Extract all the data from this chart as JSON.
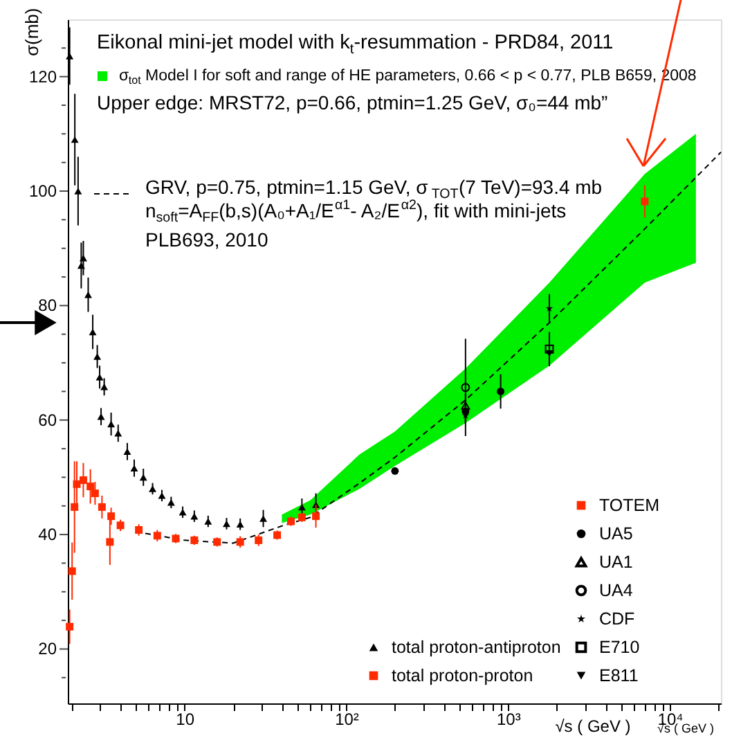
{
  "chart_data": {
    "type": "scatter",
    "title": "Eikonal mini-jet model with k$_{t}$-resummation - PRD84, 2011",
    "xlabel": "√s ( GeV )",
    "ylabel": "σ(mb)",
    "log": "x",
    "legend": "bottom right",
    "grid": false,
    "xlim": [
      1.9,
      20700
    ],
    "ylim": [
      10.5,
      130
    ],
    "xticks": [
      {
        "value": 2,
        "label": null
      },
      {
        "value": 3,
        "label": null
      },
      {
        "value": 4,
        "label": null
      },
      {
        "value": 5,
        "label": null
      },
      {
        "value": 6,
        "label": null
      },
      {
        "value": 7,
        "label": null
      },
      {
        "value": 8,
        "label": null
      },
      {
        "value": 9,
        "label": null
      },
      10,
      {
        "value": 20,
        "label": null
      },
      {
        "value": 30,
        "label": null
      },
      {
        "value": 40,
        "label": null
      },
      {
        "value": 50,
        "label": null
      },
      {
        "value": 60,
        "label": null
      },
      {
        "value": 70,
        "label": null
      },
      {
        "value": 80,
        "label": null
      },
      {
        "value": 90,
        "label": null
      },
      {
        "value": 100,
        "label": "10²"
      },
      {
        "value": 200,
        "label": null
      },
      {
        "value": 300,
        "label": null
      },
      {
        "value": 400,
        "label": null
      },
      {
        "value": 500,
        "label": null
      },
      {
        "value": 600,
        "label": null
      },
      {
        "value": 700,
        "label": null
      },
      {
        "value": 800,
        "label": null
      },
      {
        "value": 900,
        "label": null
      },
      {
        "value": 1000,
        "label": "10³"
      },
      {
        "value": 2000,
        "label": null
      },
      {
        "value": 3000,
        "label": null
      },
      {
        "value": 4000,
        "label": null
      },
      {
        "value": 5000,
        "label": null
      },
      {
        "value": 6000,
        "label": null
      },
      {
        "value": 7000,
        "label": null
      },
      {
        "value": 8000,
        "label": null
      },
      {
        "value": 9000,
        "label": null
      },
      {
        "value": 10000,
        "label": "10⁴"
      },
      {
        "value": 20000,
        "label": null
      }
    ],
    "yticks": [
      {
        "value": 15,
        "label": null
      },
      20,
      {
        "value": 25,
        "label": null
      },
      {
        "value": 30,
        "label": null
      },
      {
        "value": 35,
        "label": null
      },
      40,
      {
        "value": 45,
        "label": null
      },
      {
        "value": 50,
        "label": null
      },
      {
        "value": 55,
        "label": null
      },
      60,
      {
        "value": 65,
        "label": null
      },
      {
        "value": 70,
        "label": null
      },
      {
        "value": 75,
        "label": null
      },
      80,
      {
        "value": 85,
        "label": null
      },
      {
        "value": 90,
        "label": null
      },
      {
        "value": 95,
        "label": null
      },
      100,
      {
        "value": 105,
        "label": null
      },
      {
        "value": 110,
        "label": null
      },
      {
        "value": 115,
        "label": null
      },
      120,
      {
        "value": 125,
        "label": null
      }
    ],
    "annotations": [
      "Upper edge: MRST72, p=0.66, ptmin=1.25 GeV, σ₀=44 mb”",
      "n$_{soft}$=A$_{FF}$(b,s)(A₀+A₁/E$^{α1}$- A₂/E$^{α2}$), fit with mini-jets",
      "PLB693, 2010",
      "√s ( GeV )"
    ],
    "series": [
      {
        "name": "σ$_{tot}$ Model I  for soft and range of  HE parameters, 0.66 < p < 0.77, PLB B659, 2008",
        "type": "area",
        "color": "#00ee00",
        "x": [
          40,
          60,
          121,
          200,
          546,
          1800,
          7000,
          14500
        ],
        "values": [
          null,
          null,
          null,
          null,
          null,
          null,
          null,
          null
        ],
        "lower": [
          42,
          43.5,
          48,
          52,
          59.5,
          69.5,
          84,
          87.5
        ],
        "upper": [
          43.5,
          46,
          54,
          58,
          69,
          84,
          103,
          110
        ]
      },
      {
        "name": "GRV, p=0.75, ptmin=1.15 GeV, σ$_{TOT}$(7 TeV)=93.4 mb",
        "type": "line",
        "line_style": "dashed",
        "color": "#000000",
        "x": [
          5,
          10,
          20,
          40,
          60,
          121,
          200,
          546,
          1800,
          7000,
          20700
        ],
        "values": [
          40.5,
          39,
          38.5,
          41.5,
          43,
          49,
          53.5,
          63.5,
          77,
          93.4,
          106.8
        ]
      },
      {
        "name": "total proton-antiproton",
        "marker": "triangle",
        "color": "#000000",
        "x": [
          1.95,
          2.1,
          2.2,
          2.3,
          2.37,
          2.54,
          2.71,
          2.89,
          2.99,
          3.05,
          3.19,
          3.52,
          3.89,
          4.43,
          4.89,
          5.57,
          6.35,
          7.25,
          8.27,
          9.75,
          11.5,
          14.0,
          18.2,
          22.1,
          30.7,
          53.2,
          64.9
        ],
        "values": [
          123.6,
          109,
          100,
          87,
          88.3,
          81.9,
          75.4,
          71.1,
          67.5,
          60.6,
          65.8,
          59.3,
          57.7,
          54.5,
          51.6,
          50.0,
          48.0,
          46.8,
          45.6,
          43.9,
          43.2,
          42.3,
          41.9,
          41.8,
          42.8,
          44.8,
          45.2
        ],
        "errors": [
          5,
          8,
          6,
          4,
          3,
          3,
          3,
          2,
          2,
          1.5,
          1.5,
          2,
          1.5,
          1.5,
          1.5,
          1.5,
          1,
          1,
          1,
          1,
          1,
          1,
          1,
          1,
          1.5,
          1.5,
          2
        ]
      },
      {
        "name": "total proton-proton",
        "marker": "square",
        "color": "#ff2a00",
        "x": [
          1.95,
          2.02,
          2.09,
          2.16,
          2.37,
          2.62,
          2.8,
          3.09,
          3.46,
          3.52,
          4.02,
          5.22,
          6.79,
          8.83,
          11.5,
          15.9,
          22.1,
          28.7,
          37.4,
          45.5,
          53.2,
          64.9
        ],
        "values": [
          23.9,
          33.6,
          44.8,
          48.8,
          49.5,
          48.4,
          47.2,
          44.8,
          38.7,
          43.2,
          41.6,
          40.8,
          39.8,
          39.3,
          39.0,
          38.7,
          38.7,
          39.0,
          39.9,
          42.3,
          43.0,
          43.2
        ],
        "errors": [
          3,
          5,
          8,
          4,
          3,
          3,
          2,
          2,
          4,
          1.5,
          1,
          1,
          1,
          0.8,
          0.8,
          0.8,
          1,
          1,
          0.8,
          0.8,
          0.8,
          2
        ]
      },
      {
        "name": "TOTEM",
        "marker": "square",
        "color": "#ff2a00",
        "x": [
          7000
        ],
        "values": [
          98.2
        ],
        "errors": [
          2.8
        ]
      },
      {
        "name": "UA5",
        "marker": "circle",
        "color": "#000000",
        "x": [
          200,
          546,
          900
        ],
        "values": [
          51.1,
          61.5,
          65.0
        ],
        "errors": [
          null,
          2,
          3
        ]
      },
      {
        "name": "UA1",
        "marker": "triangle-open",
        "color": "#000000",
        "x": [
          546
        ],
        "values": [
          62.5
        ],
        "errors": [
          2
        ]
      },
      {
        "name": "UA4",
        "marker": "circle-open",
        "color": "#000000",
        "x": [
          546
        ],
        "values": [
          65.7
        ],
        "errors": [
          8.5
        ]
      },
      {
        "name": "CDF",
        "marker": "star",
        "color": "#000000",
        "x": [
          546,
          1800
        ],
        "values": [
          60.8,
          79.5
        ],
        "errors": [
          1.5,
          2.5
        ]
      },
      {
        "name": "E710",
        "marker": "square-open",
        "color": "#000000",
        "x": [
          1800
        ],
        "values": [
          72.4
        ],
        "errors": [
          3
        ]
      },
      {
        "name": "E811",
        "marker": "triangle-down",
        "color": "#000000",
        "x": [
          1800
        ],
        "values": [
          71.6
        ],
        "errors": [
          2
        ]
      }
    ]
  }
}
